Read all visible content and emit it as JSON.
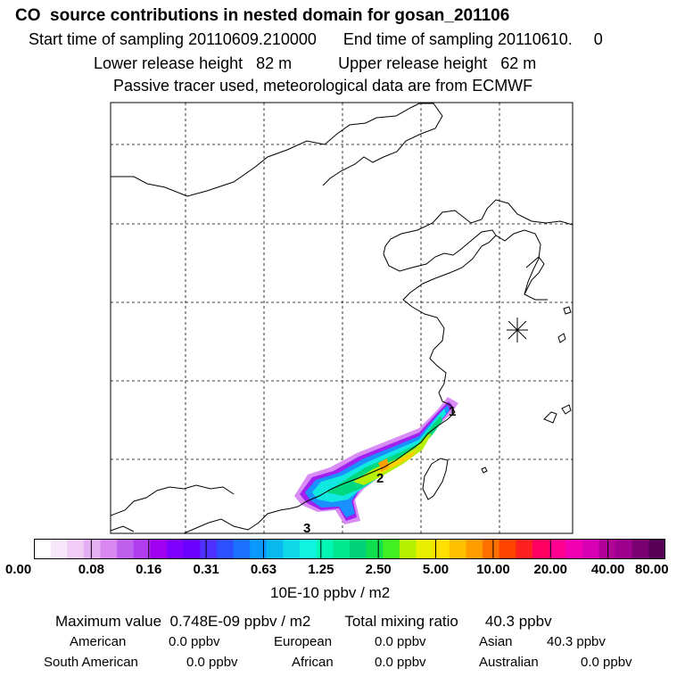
{
  "header": {
    "title": "CO  source contributions in nested domain for gosan_201106",
    "start_label": "Start time of sampling",
    "start_value": "20110609.210000",
    "end_label": "End time of sampling",
    "end_value": "20110610.",
    "end_extra": "0",
    "lower_label": "Lower release height",
    "lower_value": "82 m",
    "upper_label": "Upper release height",
    "upper_value": "62 m",
    "tracer_note": "Passive tracer used, meteorological data are from ECMWF"
  },
  "map": {
    "site_marker": "asterisk-icon",
    "labels": [
      "1",
      "2",
      "3"
    ]
  },
  "chart_data": {
    "type": "heatmap",
    "title": "CO  source contributions in nested domain for gosan_201106",
    "unit": "10E-10 ppbv / m2",
    "colorbar_ticks": [
      "0.00",
      "0.08",
      "0.16",
      "0.31",
      "0.63",
      "1.25",
      "2.50",
      "5.00",
      "10.00",
      "20.00",
      "40.00",
      "80.00"
    ],
    "colorbar_colors": [
      "#ffffff",
      "#f8e6fb",
      "#f0ccf7",
      "#e4b0f3",
      "#d888f0",
      "#c060ef",
      "#b23cef",
      "#a000f0",
      "#8000ff",
      "#6a00ff",
      "#5030ff",
      "#2c50ff",
      "#1a70ff",
      "#0a98ff",
      "#0ab8f0",
      "#10d8e8",
      "#10f4e0",
      "#00f8b4",
      "#00e890",
      "#00d27a",
      "#10e050",
      "#40f020",
      "#b4f000",
      "#e8f000",
      "#ffe000",
      "#ffc000",
      "#ff9c00",
      "#ff7000",
      "#ff4400",
      "#ff2020",
      "#ff0060",
      "#ff0090",
      "#f000b0",
      "#d800b4",
      "#b00098",
      "#9c008c",
      "#7a0072",
      "#580058"
    ],
    "max_value": "0.748E-09 ppbv / m2",
    "total_mixing_ratio": "40.3 ppbv",
    "contributions": [
      {
        "region": "American",
        "value": "0.0 ppbv"
      },
      {
        "region": "European",
        "value": "0.0 ppbv"
      },
      {
        "region": "Asian",
        "value": "40.3 ppbv"
      },
      {
        "region": "South American",
        "value": "0.0 ppbv"
      },
      {
        "region": "African",
        "value": "0.0 ppbv"
      },
      {
        "region": "Australian",
        "value": "0.0 ppbv"
      }
    ]
  },
  "footer": {
    "max_label": "Maximum value",
    "total_label": "Total mixing ratio"
  }
}
